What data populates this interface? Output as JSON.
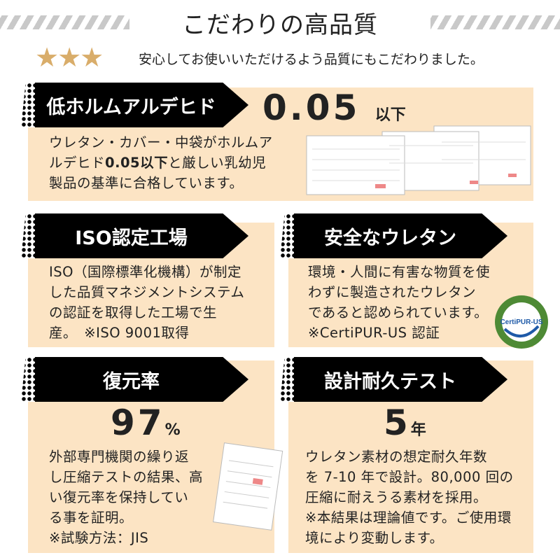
{
  "header": {
    "title": "こだわりの高品質",
    "subtitle": "安心してお使いいただけるよう品質にもこだわりました。",
    "stars": 3
  },
  "sections": [
    {
      "heading": "低ホルムアルデヒド",
      "value": "0.05",
      "unit": "以下",
      "lines": [
        "ウレタン・カバー・中袋がホルムア",
        "ルデヒド",
        "0.05以下",
        "と厳しい乳幼児",
        "製品の基準に合格しています。"
      ]
    },
    {
      "heading": "ISO認定工場",
      "lines": [
        "ISO（国際標準化機構）が制定",
        "した品質マネジメントシステム",
        "の認証を取得した工場で生",
        "産。　※ISO 9001取得"
      ]
    },
    {
      "heading": "安全なウレタン",
      "lines": [
        "環境・人間に有害な物質を使",
        "わずに製造されたウレタン",
        "であると認められています。",
        "※CertiPUR-US 認証"
      ],
      "logo": "CertiPUR-US"
    },
    {
      "heading": "復元率",
      "value": "97",
      "unit": "%",
      "lines": [
        "外部専門機関の繰り返",
        "し圧縮テストの結果、高",
        "い復元率を保持してい",
        "る事を証明。",
        "※試験方法：JIS"
      ]
    },
    {
      "heading": "設計耐久テスト",
      "value": "5",
      "unit": "年",
      "lines": [
        "ウレタン素材の想定耐久年数",
        "を 7-10 年で設計。80,000 回の",
        "圧縮に耐えうる素材を採用。",
        "※本結果は理論値です。ご使用環",
        "境により変動します。"
      ]
    }
  ],
  "colors": {
    "cream": "#fce4c4",
    "star": "#d9ad6a",
    "logo_green": "#4e8a35"
  }
}
